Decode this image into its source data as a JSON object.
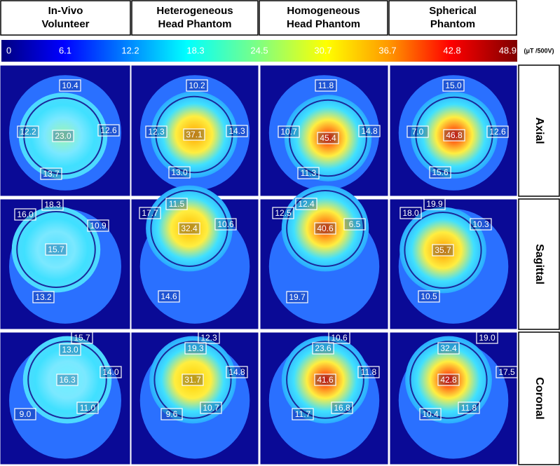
{
  "headers": [
    [
      "In-Vivo",
      "Volunteer"
    ],
    [
      "Heterogeneous",
      "Head Phantom"
    ],
    [
      "Homogeneous",
      "Head Phantom"
    ],
    [
      "Spherical",
      "Phantom"
    ]
  ],
  "colorbar": {
    "ticks": [
      "0",
      "6.1",
      "12.2",
      "18.3",
      "24.5",
      "30.7",
      "36.7",
      "42.8",
      "48.9"
    ],
    "unit": "(μT /500V)"
  },
  "rows": [
    {
      "label": "Axial",
      "panels": [
        [
          "10.4",
          "12.2",
          "23.0",
          "12.6",
          "13.7"
        ],
        [
          "10.2",
          "12.3",
          "37.1",
          "14.3",
          "13.0"
        ],
        [
          "11.8",
          "10.7",
          "45.4",
          "14.8",
          "11.3"
        ],
        [
          "15.0",
          "7.0",
          "46.8",
          "12.6",
          "15.6"
        ]
      ]
    },
    {
      "label": "Sagittal",
      "panels": [
        [
          "18.3",
          "16.0",
          "15.7",
          "10.9",
          "13.2"
        ],
        [
          "11.5",
          "17.7",
          "32.4",
          "10.6",
          "14.6"
        ],
        [
          "12.4",
          "12.5",
          "40.6",
          "6.5",
          "19.7"
        ],
        [
          "19.9",
          "18.0",
          "35.7",
          "10.3",
          "10.5"
        ]
      ]
    },
    {
      "label": "Coronal",
      "panels": [
        [
          "15.7",
          "13.0",
          "16.3",
          "14.0",
          "9.0",
          "11.0"
        ],
        [
          "12.3",
          "19.3",
          "31.7",
          "14.8",
          "9.6",
          "10.7"
        ],
        [
          "10.6",
          "23.6",
          "41.6",
          "11.8",
          "11.7",
          "16.8"
        ],
        [
          "19.0",
          "32.4",
          "42.8",
          "17.5",
          "10.4",
          "11.8"
        ]
      ]
    }
  ]
}
